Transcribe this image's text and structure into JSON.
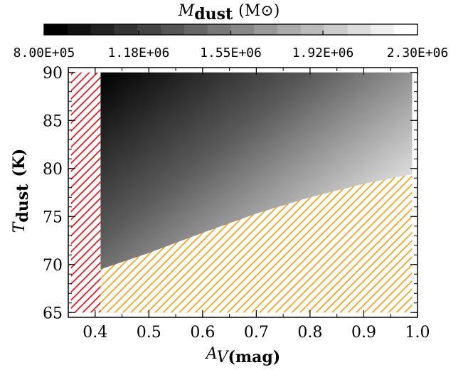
{
  "chart_data": {
    "type": "heatmap",
    "colorbar": {
      "title_main": "M",
      "title_sub": "dust",
      "title_unit": "(M⊙)",
      "tick_labels": [
        "8.00E+05",
        "1.18E+06",
        "1.55E+06",
        "1.92E+06",
        "2.30E+06"
      ],
      "tick_values": [
        800000,
        1180000,
        1550000,
        1920000,
        2300000
      ],
      "range": [
        800000,
        2300000
      ],
      "n_steps": 16,
      "colormap": "grayscale (black = low, white = high)"
    },
    "xlabel_main": "A",
    "xlabel_sub": "V",
    "xlabel_unit": "(mag)",
    "ylabel_main": "T",
    "ylabel_sub": "dust",
    "ylabel_unit": "(K)",
    "xlim": [
      0.35,
      1.0
    ],
    "ylim": [
      64.5,
      90.5
    ],
    "x_ticks": [
      0.4,
      0.5,
      0.6,
      0.7,
      0.8,
      0.9,
      1.0
    ],
    "x_tick_labels": [
      "0.4",
      "0.5",
      "0.6",
      "0.7",
      "0.8",
      "0.9",
      "1.0"
    ],
    "y_ticks": [
      65,
      70,
      75,
      80,
      85,
      90
    ],
    "y_tick_labels": [
      "65",
      "70",
      "75",
      "80",
      "85",
      "90"
    ],
    "data_region": {
      "av": [
        0.41,
        0.99
      ],
      "tdust": [
        65.0,
        90.0
      ]
    },
    "excluded_red_hatch": {
      "av": [
        0.355,
        0.41
      ],
      "tdust": [
        65.0,
        90.0
      ],
      "color": "#e0161e"
    },
    "excluded_orange_boundary": {
      "av": [
        0.41,
        0.5,
        0.6,
        0.7,
        0.8,
        0.9,
        0.99
      ],
      "tdust": [
        69.5,
        71.2,
        73.3,
        75.3,
        77.0,
        78.4,
        79.4
      ],
      "color": "#f5a21b"
    },
    "grid": false
  }
}
